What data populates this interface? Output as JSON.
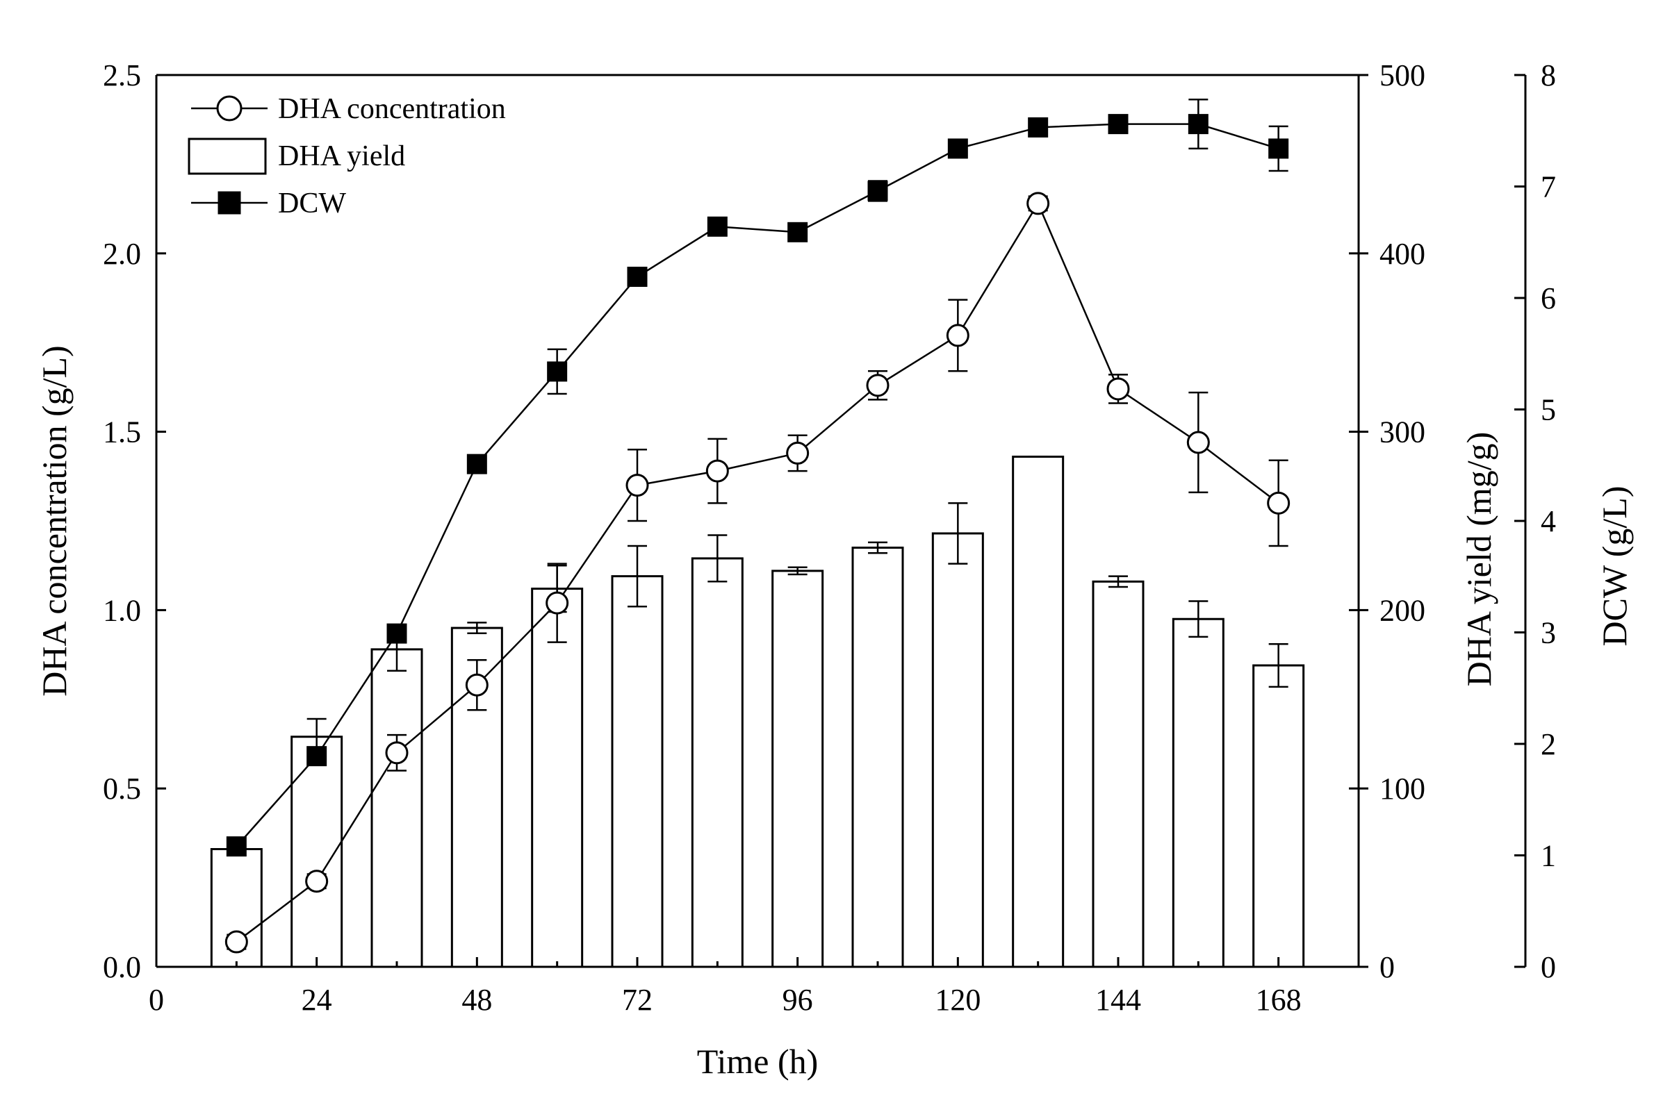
{
  "chart_data": {
    "type": "bar+line",
    "x": [
      12,
      24,
      36,
      48,
      60,
      72,
      84,
      96,
      108,
      120,
      132,
      144,
      156,
      168
    ],
    "xlabel": "Time (h)",
    "xlim": [
      0,
      180
    ],
    "xticks": [
      0,
      24,
      48,
      72,
      96,
      120,
      144,
      168
    ],
    "xtick_labels": [
      "0",
      "24",
      "48",
      "72",
      "96",
      "120",
      "144",
      "168"
    ],
    "axes": {
      "left": {
        "label": "DHA concentration (g/L)",
        "lim": [
          0,
          2.5
        ],
        "ticks": [
          0,
          0.5,
          1.0,
          1.5,
          2.0,
          2.5
        ],
        "tick_labels": [
          "0.0",
          "0.5",
          "1.0",
          "1.5",
          "2.0",
          "2.5"
        ]
      },
      "right1": {
        "label": "DHA yield (mg/g)",
        "lim": [
          0,
          500
        ],
        "ticks": [
          0,
          100,
          200,
          300,
          400,
          500
        ],
        "tick_labels": [
          "0",
          "100",
          "200",
          "300",
          "400",
          "500"
        ]
      },
      "right2": {
        "label": "DCW (g/L)",
        "lim": [
          0,
          8
        ],
        "ticks": [
          0,
          1,
          2,
          3,
          4,
          5,
          6,
          7,
          8
        ],
        "tick_labels": [
          "0",
          "1",
          "2",
          "3",
          "4",
          "5",
          "6",
          "7",
          "8"
        ]
      }
    },
    "series": [
      {
        "name": "DHA concentration",
        "type": "line",
        "marker": "open-circle",
        "axis": "left",
        "values": [
          0.07,
          0.24,
          0.6,
          0.79,
          1.02,
          1.35,
          1.39,
          1.44,
          1.63,
          1.77,
          2.14,
          1.62,
          1.47,
          1.3
        ],
        "errors": [
          0.02,
          0.02,
          0.05,
          0.07,
          0.11,
          0.1,
          0.09,
          0.05,
          0.04,
          0.1,
          0.02,
          0.04,
          0.14,
          0.12
        ]
      },
      {
        "name": "DHA yield",
        "type": "bar",
        "axis": "right1",
        "values": [
          66,
          129,
          178,
          190,
          212,
          219,
          229,
          222,
          235,
          243,
          286,
          216,
          195,
          169
        ],
        "errors": [
          0,
          10,
          12,
          3,
          13,
          17,
          13,
          2,
          3,
          17,
          0,
          3,
          10,
          12
        ]
      },
      {
        "name": "DCW",
        "type": "line",
        "marker": "filled-square",
        "axis": "right2",
        "values": [
          1.08,
          1.89,
          2.99,
          4.51,
          5.34,
          6.19,
          6.64,
          6.59,
          6.96,
          7.34,
          7.53,
          7.56,
          7.56,
          7.34
        ],
        "errors": [
          0.03,
          0.03,
          0.03,
          0.03,
          0.2,
          0.03,
          0.03,
          0.03,
          0.09,
          0.03,
          0.03,
          0.03,
          0.22,
          0.2
        ]
      }
    ],
    "legend": {
      "placement": "top-left",
      "entries": [
        "DHA concentration",
        "DHA yield",
        "DCW"
      ]
    }
  }
}
